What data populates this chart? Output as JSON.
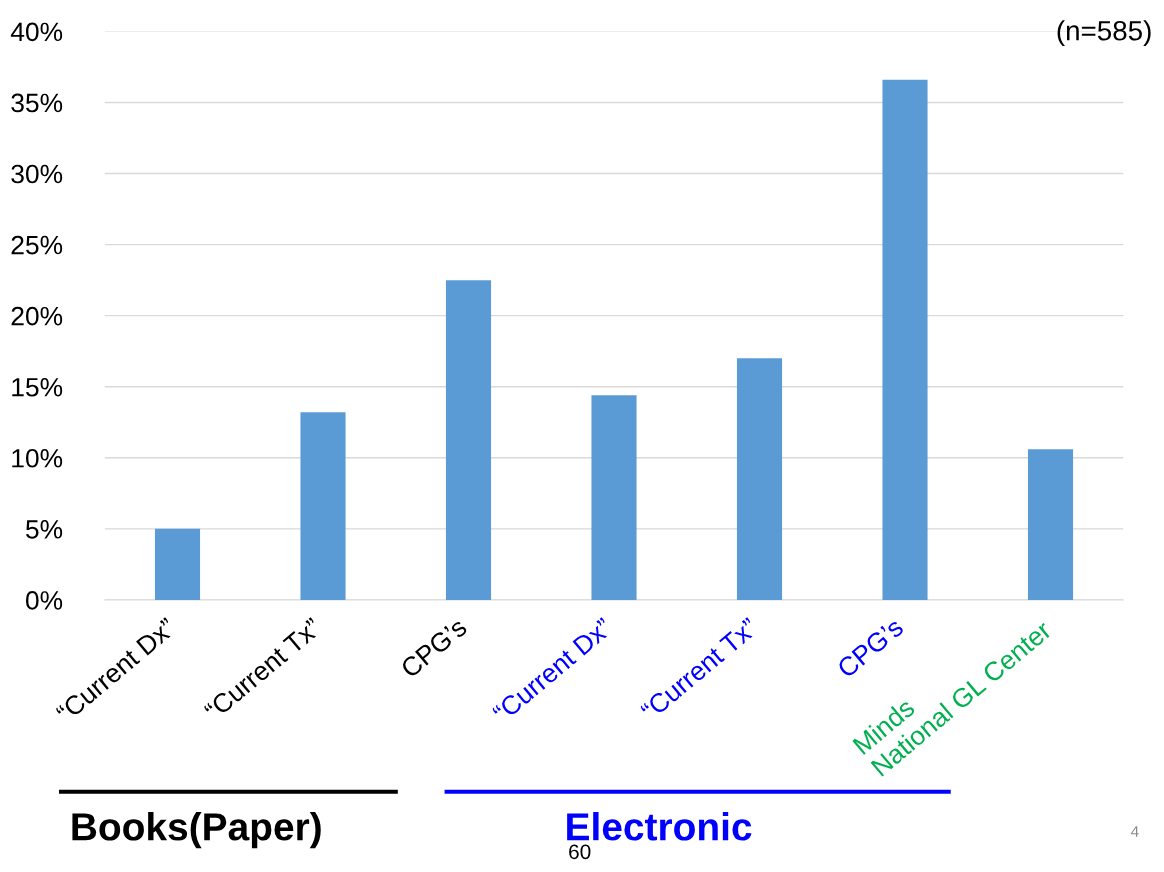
{
  "chart_data": {
    "type": "bar",
    "categories": [
      "“Current Dx”",
      "“Current Tx”",
      "CPG’s",
      "“Current Dx”",
      "“Current Tx”",
      "CPG’s",
      "Minds\nNational GL Center"
    ],
    "values": [
      5.0,
      13.2,
      22.5,
      14.4,
      17.0,
      36.6,
      10.6
    ],
    "color": "#5b9bd5",
    "ylim": [
      0,
      40
    ],
    "yticks": [
      {
        "value": 0,
        "label": "0%"
      },
      {
        "value": 5,
        "label": "5%"
      },
      {
        "value": 10,
        "label": "10%"
      },
      {
        "value": 15,
        "label": "15%"
      },
      {
        "value": 20,
        "label": "20%"
      },
      {
        "value": 25,
        "label": "25%"
      },
      {
        "value": 30,
        "label": "30%"
      },
      {
        "value": 35,
        "label": "35%"
      },
      {
        "value": 40,
        "label": "40%"
      }
    ],
    "grid": "y",
    "annotations": [
      "(n=585)",
      "Books(Paper)",
      "Electronic",
      "60",
      "4"
    ]
  }
}
